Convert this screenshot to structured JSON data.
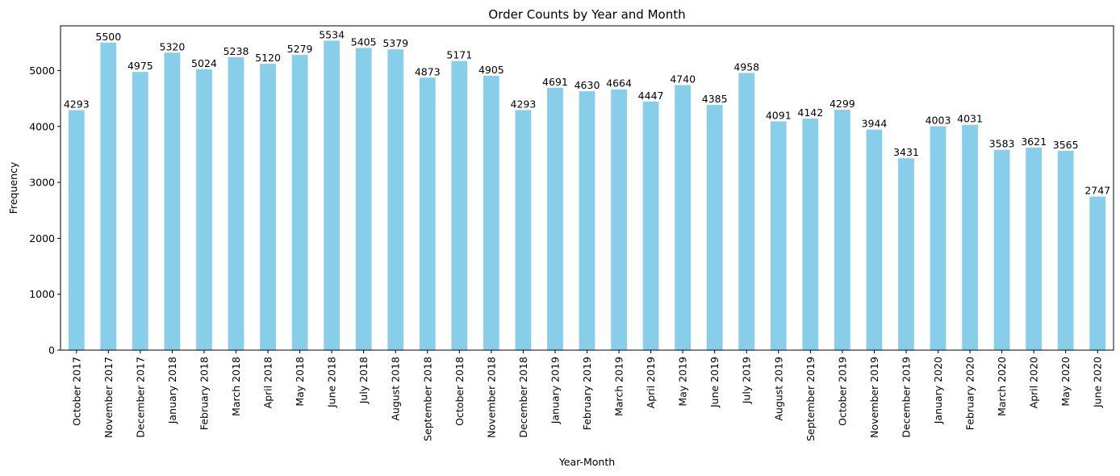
{
  "chart_data": {
    "type": "bar",
    "title": "Order Counts by Year and Month",
    "xlabel": "Year-Month",
    "ylabel": "Frequency",
    "ylim": [
      0,
      5800
    ],
    "yticks": [
      0,
      1000,
      2000,
      3000,
      4000,
      5000
    ],
    "grid": false,
    "bar_color": "#87CEEB",
    "categories": [
      "October 2017",
      "November 2017",
      "December 2017",
      "January 2018",
      "February 2018",
      "March 2018",
      "April 2018",
      "May 2018",
      "June 2018",
      "July 2018",
      "August 2018",
      "September 2018",
      "October 2018",
      "November 2018",
      "December 2018",
      "January 2019",
      "February 2019",
      "March 2019",
      "April 2019",
      "May 2019",
      "June 2019",
      "July 2019",
      "August 2019",
      "September 2019",
      "October 2019",
      "November 2019",
      "December 2019",
      "January 2020",
      "February 2020",
      "March 2020",
      "April 2020",
      "May 2020",
      "June 2020"
    ],
    "values": [
      4293,
      5500,
      4975,
      5320,
      5024,
      5238,
      5120,
      5279,
      5534,
      5405,
      5379,
      4873,
      5171,
      4905,
      4293,
      4691,
      4630,
      4664,
      4447,
      4740,
      4385,
      4958,
      4091,
      4142,
      4299,
      3944,
      3431,
      4003,
      4031,
      3583,
      3621,
      3565,
      2747
    ]
  }
}
